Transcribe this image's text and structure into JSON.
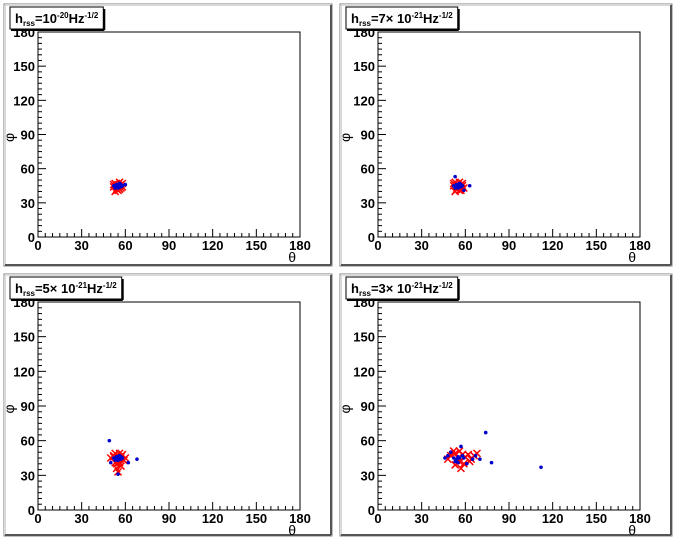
{
  "chart_data": [
    {
      "type": "scatter",
      "title_parts": [
        {
          "t": "h",
          "s": "n"
        },
        {
          "t": "rss",
          "s": "sub"
        },
        {
          "t": "=10",
          "s": "n"
        },
        {
          "t": "-20",
          "s": "sup"
        },
        {
          "t": "Hz",
          "s": "n"
        },
        {
          "t": "-1/2",
          "s": "sup"
        }
      ],
      "xlabel": "θ",
      "ylabel": "φ",
      "xlim": [
        0,
        180
      ],
      "ylim": [
        0,
        180
      ],
      "xticks": [
        "0",
        "30",
        "60",
        "90",
        "120",
        "150",
        "180"
      ],
      "yticks": [
        "0",
        "30",
        "60",
        "90",
        "120",
        "150",
        "180"
      ],
      "series": [
        {
          "marker": "x",
          "color": "#ff0000",
          "points": [
            [
              52,
              44
            ],
            [
              53,
              47
            ],
            [
              54,
              42
            ],
            [
              55,
              46
            ],
            [
              56,
              45
            ],
            [
              57,
              43
            ],
            [
              58,
              47
            ],
            [
              53,
              40
            ],
            [
              55,
              41
            ],
            [
              56,
              48
            ],
            [
              52,
              46
            ],
            [
              54,
              45
            ],
            [
              57,
              46
            ],
            [
              55,
              44
            ],
            [
              58,
              44
            ],
            [
              56,
              42
            ]
          ]
        },
        {
          "marker": "dot",
          "color": "#0000cc",
          "points": [
            [
              53,
              45
            ],
            [
              54,
              44
            ],
            [
              55,
              46
            ],
            [
              56,
              45
            ],
            [
              57,
              44
            ],
            [
              55,
              43
            ],
            [
              54,
              46
            ],
            [
              56,
              47
            ],
            [
              53,
              43
            ],
            [
              57,
              46
            ],
            [
              55,
              45
            ],
            [
              54,
              45
            ],
            [
              56,
              44
            ],
            [
              58,
              45
            ],
            [
              60,
              46
            ],
            [
              52,
              45
            ]
          ]
        }
      ]
    },
    {
      "type": "scatter",
      "title_parts": [
        {
          "t": "h",
          "s": "n"
        },
        {
          "t": "rss",
          "s": "sub"
        },
        {
          "t": "=7× 10",
          "s": "n"
        },
        {
          "t": "-21",
          "s": "sup"
        },
        {
          "t": "Hz",
          "s": "n"
        },
        {
          "t": "-1/2",
          "s": "sup"
        }
      ],
      "xlabel": "θ",
      "ylabel": "φ",
      "xlim": [
        0,
        180
      ],
      "ylim": [
        0,
        180
      ],
      "xticks": [
        "0",
        "30",
        "60",
        "90",
        "120",
        "150",
        "180"
      ],
      "yticks": [
        "0",
        "30",
        "60",
        "90",
        "120",
        "150",
        "180"
      ],
      "series": [
        {
          "marker": "x",
          "color": "#ff0000",
          "points": [
            [
              52,
              45
            ],
            [
              53,
              48
            ],
            [
              54,
              42
            ],
            [
              55,
              46
            ],
            [
              56,
              44
            ],
            [
              57,
              41
            ],
            [
              58,
              47
            ],
            [
              53,
              40
            ],
            [
              55,
              43
            ],
            [
              56,
              48
            ],
            [
              52,
              47
            ],
            [
              54,
              45
            ],
            [
              57,
              46
            ],
            [
              55,
              44
            ],
            [
              58,
              45
            ],
            [
              56,
              41
            ],
            [
              59,
              43
            ]
          ]
        },
        {
          "marker": "dot",
          "color": "#0000cc",
          "points": [
            [
              53,
              53
            ],
            [
              54,
              44
            ],
            [
              55,
              46
            ],
            [
              56,
              45
            ],
            [
              57,
              44
            ],
            [
              55,
              43
            ],
            [
              54,
              46
            ],
            [
              56,
              47
            ],
            [
              53,
              43
            ],
            [
              57,
              46
            ],
            [
              55,
              45
            ],
            [
              54,
              45
            ],
            [
              56,
              44
            ],
            [
              58,
              45
            ],
            [
              63,
              45
            ],
            [
              52,
              45
            ],
            [
              59,
              41
            ]
          ]
        }
      ]
    },
    {
      "type": "scatter",
      "title_parts": [
        {
          "t": "h",
          "s": "n"
        },
        {
          "t": "rss",
          "s": "sub"
        },
        {
          "t": "=5× 10",
          "s": "n"
        },
        {
          "t": "-21",
          "s": "sup"
        },
        {
          "t": "Hz",
          "s": "n"
        },
        {
          "t": "-1/2",
          "s": "sup"
        }
      ],
      "xlabel": "θ",
      "ylabel": "φ",
      "xlim": [
        0,
        180
      ],
      "ylim": [
        0,
        180
      ],
      "xticks": [
        "0",
        "30",
        "60",
        "90",
        "120",
        "150",
        "180"
      ],
      "yticks": [
        "0",
        "30",
        "60",
        "90",
        "120",
        "150",
        "180"
      ],
      "series": [
        {
          "marker": "x",
          "color": "#ff0000",
          "points": [
            [
              52,
              46
            ],
            [
              53,
              49
            ],
            [
              54,
              40
            ],
            [
              55,
              46
            ],
            [
              56,
              44
            ],
            [
              57,
              38
            ],
            [
              58,
              48
            ],
            [
              53,
              41
            ],
            [
              55,
              43
            ],
            [
              56,
              49
            ],
            [
              52,
              47
            ],
            [
              54,
              36
            ],
            [
              57,
              46
            ],
            [
              55,
              33
            ],
            [
              60,
              45
            ],
            [
              56,
              41
            ],
            [
              59,
              43
            ],
            [
              50,
              45
            ]
          ]
        },
        {
          "marker": "dot",
          "color": "#0000cc",
          "points": [
            [
              49,
              60
            ],
            [
              54,
              44
            ],
            [
              55,
              46
            ],
            [
              56,
              45
            ],
            [
              57,
              44
            ],
            [
              55,
              43
            ],
            [
              54,
              46
            ],
            [
              56,
              47
            ],
            [
              53,
              43
            ],
            [
              57,
              46
            ],
            [
              55,
              45
            ],
            [
              54,
              45
            ],
            [
              56,
              44
            ],
            [
              58,
              45
            ],
            [
              68,
              44
            ],
            [
              52,
              45
            ],
            [
              55,
              31
            ],
            [
              62,
              41
            ],
            [
              50,
              41
            ]
          ]
        }
      ]
    },
    {
      "type": "scatter",
      "title_parts": [
        {
          "t": "h",
          "s": "n"
        },
        {
          "t": "rss",
          "s": "sub"
        },
        {
          "t": "=3× 10",
          "s": "n"
        },
        {
          "t": "-21",
          "s": "sup"
        },
        {
          "t": "Hz",
          "s": "n"
        },
        {
          "t": "-1/2",
          "s": "sup"
        }
      ],
      "xlabel": "θ",
      "ylabel": "φ",
      "xlim": [
        0,
        180
      ],
      "ylim": [
        0,
        180
      ],
      "xticks": [
        "0",
        "30",
        "60",
        "90",
        "120",
        "150",
        "180"
      ],
      "yticks": [
        "0",
        "30",
        "60",
        "90",
        "120",
        "150",
        "180"
      ],
      "series": [
        {
          "marker": "x",
          "color": "#ff0000",
          "points": [
            [
              50,
              47
            ],
            [
              52,
              51
            ],
            [
              53,
              39
            ],
            [
              55,
              45
            ],
            [
              56,
              42
            ],
            [
              57,
              36
            ],
            [
              58,
              48
            ],
            [
              54,
              43
            ],
            [
              60,
              46
            ],
            [
              62,
              48
            ],
            [
              64,
              44
            ],
            [
              66,
              47
            ],
            [
              68,
              49
            ],
            [
              56,
              51
            ],
            [
              48,
              44
            ],
            [
              59,
              40
            ],
            [
              63,
              42
            ],
            [
              53,
              49
            ]
          ]
        },
        {
          "marker": "dot",
          "color": "#0000cc",
          "points": [
            [
              48,
              47
            ],
            [
              52,
              45
            ],
            [
              54,
              44
            ],
            [
              55,
              46
            ],
            [
              56,
              45
            ],
            [
              57,
              55
            ],
            [
              53,
              42
            ],
            [
              59,
              45
            ],
            [
              61,
              40
            ],
            [
              65,
              44
            ],
            [
              67,
              47
            ],
            [
              74,
              67
            ],
            [
              78,
              41
            ],
            [
              112,
              37
            ],
            [
              50,
              50
            ],
            [
              55,
              41
            ],
            [
              58,
              47
            ],
            [
              46,
              45
            ],
            [
              70,
              44
            ]
          ]
        }
      ]
    }
  ]
}
